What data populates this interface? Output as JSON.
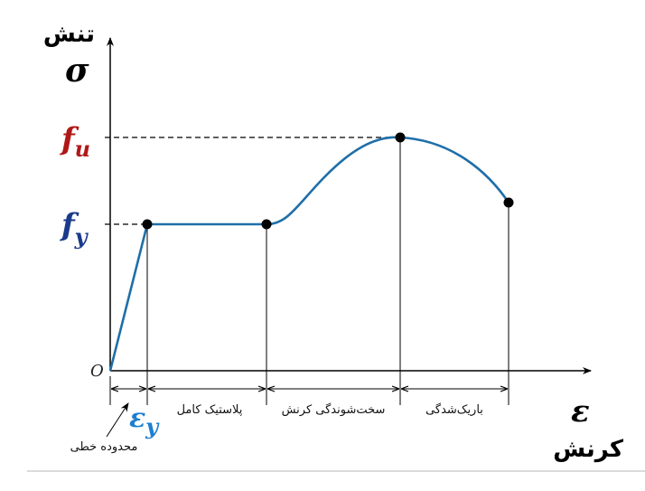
{
  "axes": {
    "y_label": "تنش",
    "y_symbol": "σ",
    "x_label": "کرنش",
    "x_symbol": "ε",
    "origin": "O"
  },
  "levels": {
    "fu": {
      "base": "f",
      "sub": "u",
      "color": "#b01818"
    },
    "fy": {
      "base": "f",
      "sub": "y",
      "color": "#1a3a8a"
    },
    "ey": {
      "base": "ε",
      "sub": "y",
      "color": "#1e7fd0"
    }
  },
  "regions": [
    {
      "label": "محدوده خطی"
    },
    {
      "label": "پلاستیک کامل"
    },
    {
      "label": "سخت‌شوندگی کرنش"
    },
    {
      "label": "باریک‌شدگی"
    }
  ],
  "colors": {
    "curve": "#1f6fa8",
    "axis": "#000000"
  }
}
